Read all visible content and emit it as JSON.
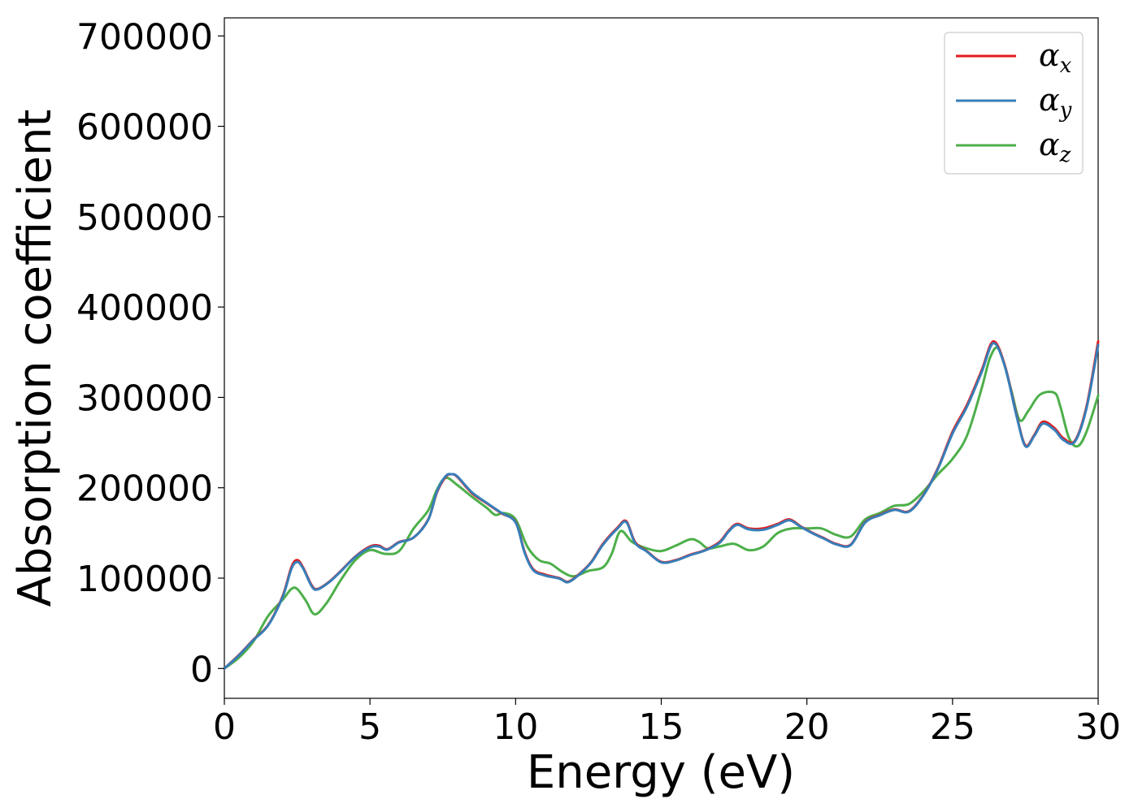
{
  "chart_data": {
    "type": "line",
    "title": "",
    "xlabel": "Energy (eV)",
    "ylabel": "Absorption coefficient",
    "xlim": [
      0,
      30
    ],
    "ylim": [
      -33000,
      720000
    ],
    "xticks": [
      0,
      5,
      10,
      15,
      20,
      25,
      30
    ],
    "yticks": [
      0,
      100000,
      200000,
      300000,
      400000,
      500000,
      600000,
      700000
    ],
    "grid": false,
    "legend_position": "top-right",
    "series": [
      {
        "name": "α_x",
        "symbol": "α",
        "subscript": "x",
        "color": "#e41a1c",
        "x": [
          0,
          0.5,
          1.0,
          1.5,
          2.0,
          2.3,
          2.5,
          2.7,
          3.0,
          3.2,
          3.6,
          4.0,
          4.5,
          5.0,
          5.3,
          5.6,
          6.0,
          6.5,
          7.0,
          7.3,
          7.6,
          7.8,
          8.0,
          8.5,
          9.0,
          9.5,
          10.0,
          10.3,
          10.6,
          11.0,
          11.5,
          11.8,
          12.2,
          12.6,
          13.0,
          13.5,
          13.8,
          14.1,
          14.5,
          15.0,
          15.5,
          16.0,
          16.5,
          17.0,
          17.3,
          17.6,
          18.0,
          18.5,
          19.0,
          19.4,
          19.8,
          20.2,
          20.6,
          21.0,
          21.5,
          22.0,
          22.5,
          23.0,
          23.5,
          24.0,
          24.5,
          25.0,
          25.5,
          26.0,
          26.4,
          26.8,
          27.2,
          27.5,
          27.8,
          28.1,
          28.5,
          28.8,
          29.2,
          29.6,
          30.0
        ],
        "y": [
          0,
          15000,
          32000,
          48000,
          80000,
          112000,
          120000,
          112000,
          92000,
          88000,
          96000,
          108000,
          124000,
          135000,
          136000,
          132000,
          140000,
          145000,
          165000,
          195000,
          212000,
          215000,
          212000,
          194000,
          183000,
          172000,
          162000,
          130000,
          110000,
          104000,
          100000,
          96000,
          105000,
          118000,
          138000,
          156000,
          163000,
          140000,
          130000,
          118000,
          120000,
          126000,
          131000,
          140000,
          152000,
          160000,
          155000,
          155000,
          160000,
          165000,
          157000,
          150000,
          144000,
          138000,
          137000,
          162000,
          170000,
          176000,
          174000,
          192000,
          222000,
          262000,
          292000,
          330000,
          362000,
          335000,
          280000,
          247000,
          258000,
          273000,
          266000,
          255000,
          252000,
          290000,
          362000
        ]
      },
      {
        "name": "α_y",
        "symbol": "α",
        "subscript": "y",
        "color": "#377eb8",
        "x": [
          0,
          0.5,
          1.0,
          1.5,
          2.0,
          2.3,
          2.5,
          2.7,
          3.0,
          3.2,
          3.6,
          4.0,
          4.5,
          5.0,
          5.3,
          5.6,
          6.0,
          6.5,
          7.0,
          7.3,
          7.6,
          7.8,
          8.0,
          8.5,
          9.0,
          9.5,
          10.0,
          10.3,
          10.6,
          11.0,
          11.5,
          11.8,
          12.2,
          12.6,
          13.0,
          13.5,
          13.8,
          14.1,
          14.5,
          15.0,
          15.5,
          16.0,
          16.5,
          17.0,
          17.3,
          17.6,
          18.0,
          18.5,
          19.0,
          19.4,
          19.8,
          20.2,
          20.6,
          21.0,
          21.5,
          22.0,
          22.5,
          23.0,
          23.5,
          24.0,
          24.5,
          25.0,
          25.5,
          26.0,
          26.4,
          26.8,
          27.2,
          27.5,
          27.8,
          28.1,
          28.5,
          28.8,
          29.2,
          29.6,
          30.0
        ],
        "y": [
          0,
          14500,
          31500,
          47500,
          79000,
          110000,
          118000,
          111000,
          91000,
          87500,
          95500,
          107500,
          123500,
          134000,
          135000,
          131500,
          139500,
          145000,
          164500,
          196000,
          213000,
          215000,
          212500,
          195000,
          183500,
          172500,
          161500,
          129000,
          109000,
          103000,
          99500,
          95500,
          104500,
          117500,
          137000,
          155000,
          162000,
          139000,
          129500,
          117500,
          119500,
          125500,
          130500,
          139000,
          151000,
          159000,
          154000,
          153500,
          159000,
          164000,
          156500,
          149500,
          143500,
          137500,
          136500,
          161500,
          169500,
          175500,
          173500,
          191500,
          221000,
          260000,
          290000,
          328000,
          360000,
          334000,
          279000,
          246000,
          257000,
          271000,
          264000,
          253000,
          251000,
          288000,
          358000
        ]
      },
      {
        "name": "α_z",
        "symbol": "α",
        "subscript": "z",
        "color": "#4daf4a",
        "x": [
          0,
          0.5,
          1.0,
          1.5,
          2.0,
          2.3,
          2.5,
          2.8,
          3.1,
          3.5,
          4.0,
          4.5,
          5.0,
          5.5,
          6.0,
          6.5,
          7.0,
          7.3,
          7.6,
          8.0,
          8.5,
          9.0,
          9.3,
          9.6,
          10.0,
          10.4,
          10.8,
          11.2,
          11.6,
          12.0,
          12.5,
          13.0,
          13.3,
          13.6,
          14.0,
          14.5,
          15.0,
          15.5,
          16.0,
          16.3,
          16.6,
          17.0,
          17.5,
          18.0,
          18.5,
          19.0,
          19.5,
          20.0,
          20.5,
          21.0,
          21.5,
          22.0,
          22.5,
          23.0,
          23.5,
          24.0,
          24.5,
          25.0,
          25.5,
          26.0,
          26.3,
          26.6,
          27.0,
          27.3,
          27.6,
          28.0,
          28.5,
          28.7,
          29.0,
          29.3,
          29.6,
          30.0
        ],
        "y": [
          0,
          12000,
          30000,
          58000,
          76000,
          88000,
          88000,
          75000,
          60000,
          72000,
          98000,
          120000,
          131000,
          127000,
          130000,
          155000,
          175000,
          198000,
          211000,
          203000,
          190000,
          178000,
          170000,
          172000,
          165000,
          135000,
          120000,
          116000,
          107000,
          102000,
          108000,
          112000,
          127000,
          152000,
          140000,
          133000,
          130000,
          136000,
          143000,
          140000,
          133000,
          135000,
          138000,
          131000,
          135000,
          150000,
          155000,
          155000,
          155000,
          148000,
          146000,
          165000,
          172000,
          180000,
          182000,
          196000,
          215000,
          232000,
          258000,
          310000,
          345000,
          353000,
          310000,
          275000,
          285000,
          303000,
          305000,
          290000,
          255000,
          246000,
          262000,
          302000
        ]
      }
    ]
  }
}
